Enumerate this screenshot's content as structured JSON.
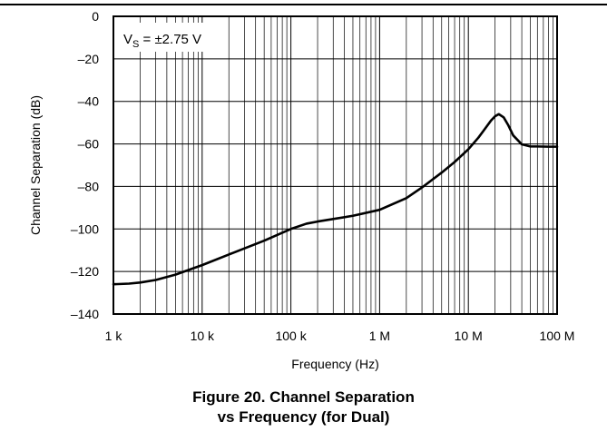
{
  "caption": {
    "line1": "Figure 20. Channel Separation",
    "line2": "vs Frequency (for Dual)"
  },
  "chart_data": {
    "type": "line",
    "title": "",
    "xlabel": "Frequency (Hz)",
    "ylabel": "Channel Separation (dB)",
    "x_scale": "log",
    "xlim": [
      1000,
      100000000
    ],
    "ylim": [
      -140,
      0
    ],
    "grid": true,
    "annotation": {
      "prefix": "V",
      "subscript": "S",
      "suffix": " = ±2.75 V"
    },
    "x_ticks": [
      {
        "value": 1000,
        "label": "1 k"
      },
      {
        "value": 10000,
        "label": "10 k"
      },
      {
        "value": 100000,
        "label": "100 k"
      },
      {
        "value": 1000000,
        "label": "1 M"
      },
      {
        "value": 10000000,
        "label": "10 M"
      },
      {
        "value": 100000000,
        "label": "100 M"
      }
    ],
    "y_ticks": [
      {
        "value": 0,
        "label": "0"
      },
      {
        "value": -20,
        "label": "–20"
      },
      {
        "value": -40,
        "label": "–40"
      },
      {
        "value": -60,
        "label": "–60"
      },
      {
        "value": -80,
        "label": "–80"
      },
      {
        "value": -100,
        "label": "–100"
      },
      {
        "value": -120,
        "label": "–120"
      },
      {
        "value": -140,
        "label": "–140"
      }
    ],
    "series": [
      {
        "color": "#000000",
        "x": [
          1000,
          1500,
          2000,
          3000,
          5000,
          10000,
          20000,
          50000,
          100000,
          150000,
          200000,
          500000,
          1000000,
          2000000,
          3000000,
          5000000,
          7000000,
          10000000,
          13000000,
          15000000,
          18000000,
          20000000,
          22000000,
          25000000,
          28000000,
          32000000,
          40000000,
          50000000,
          60000000,
          80000000,
          100000000
        ],
        "y": [
          -126,
          -125.7,
          -125.2,
          -124,
          -121.5,
          -117,
          -112,
          -105.5,
          -100,
          -97.5,
          -96.5,
          -93.8,
          -91,
          -85.5,
          -80.5,
          -73.5,
          -68.5,
          -62.5,
          -57,
          -53.5,
          -49,
          -47,
          -46,
          -47.5,
          -51,
          -56,
          -60.2,
          -61.2,
          -61.2,
          -61.3,
          -61.3
        ]
      }
    ]
  }
}
